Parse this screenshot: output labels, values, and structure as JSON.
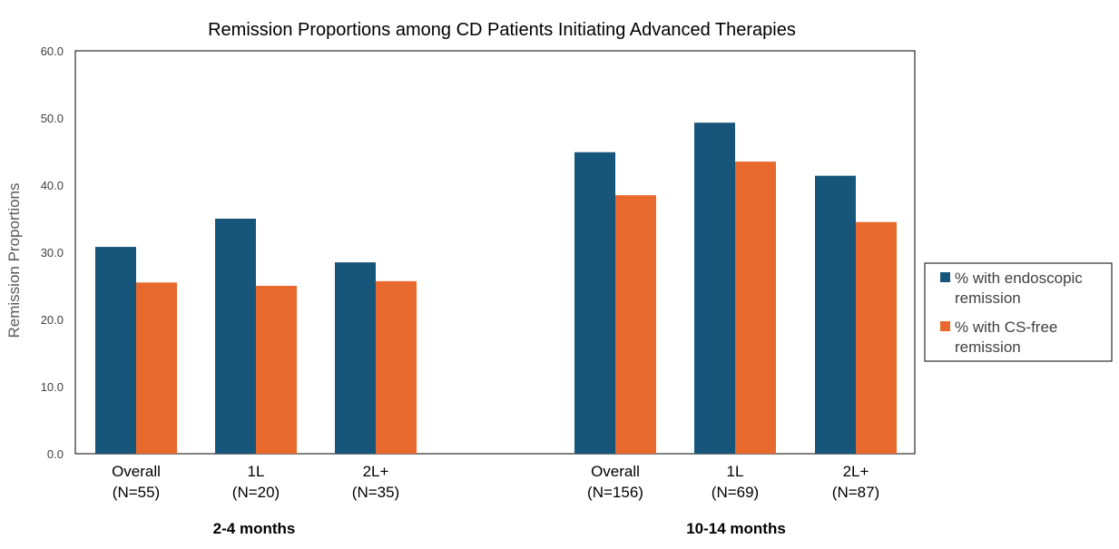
{
  "chart_data": {
    "type": "bar",
    "title": "Remission Proportions among CD Patients Initiating Advanced Therapies",
    "ylabel": "Remission Proportions",
    "xlabel": "",
    "ylim": [
      0,
      60
    ],
    "yticks": [
      "0.0",
      "10.0",
      "20.0",
      "30.0",
      "40.0",
      "50.0",
      "60.0"
    ],
    "grid": false,
    "legend_position": "right",
    "groups": [
      {
        "label": "2-4 months",
        "categories": [
          {
            "line1": "Overall",
            "line2": "(N=55)"
          },
          {
            "line1": "1L",
            "line2": "(N=20)"
          },
          {
            "line1": "2L+",
            "line2": "(N=35)"
          }
        ]
      },
      {
        "label": "10-14 months",
        "categories": [
          {
            "line1": "Overall",
            "line2": "(N=156)"
          },
          {
            "line1": "1L",
            "line2": "(N=69)"
          },
          {
            "line1": "2L+",
            "line2": "(N=87)"
          }
        ]
      }
    ],
    "series": [
      {
        "name_line1": "% with endoscopic",
        "name_line2": "remission",
        "color": "#17567a",
        "values": [
          30.8,
          35.0,
          28.5,
          44.9,
          49.3,
          41.4
        ]
      },
      {
        "name_line1": "% with CS-free",
        "name_line2": "remission",
        "color": "#e8692d",
        "values": [
          25.5,
          25.0,
          25.7,
          38.5,
          43.5,
          34.5
        ]
      }
    ]
  }
}
